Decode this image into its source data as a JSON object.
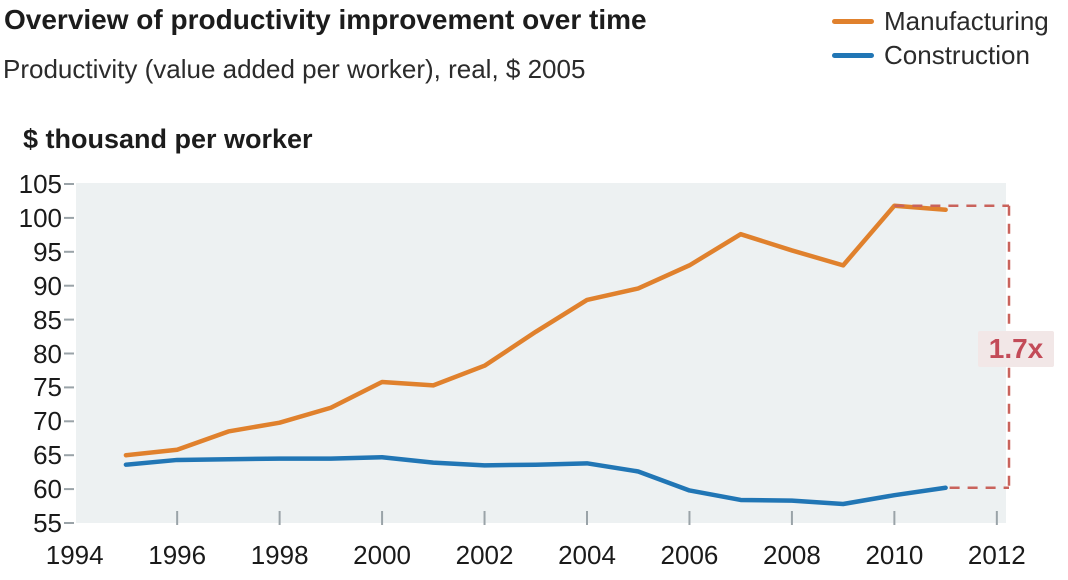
{
  "chart_data": {
    "type": "line",
    "title": "Overview of productivity improvement over time",
    "subtitle": "Productivity (value added per worker), real, $ 2005",
    "ylabel": "$ thousand per worker",
    "x": [
      1995,
      1996,
      1997,
      1998,
      1999,
      2000,
      2001,
      2002,
      2003,
      2004,
      2005,
      2006,
      2007,
      2008,
      2009,
      2010,
      2011
    ],
    "series": [
      {
        "name": "Manufacturing",
        "color": "#E0812D",
        "values": [
          65.0,
          65.8,
          68.5,
          69.8,
          72.0,
          75.8,
          75.3,
          78.2,
          83.2,
          87.9,
          89.6,
          93.0,
          97.6,
          95.2,
          93.0,
          101.8,
          101.2
        ]
      },
      {
        "name": "Construction",
        "color": "#2176B5",
        "values": [
          63.6,
          64.3,
          64.4,
          64.5,
          64.5,
          64.7,
          63.9,
          63.5,
          63.6,
          63.8,
          62.6,
          59.8,
          58.4,
          58.3,
          57.8,
          59.1,
          60.2
        ]
      }
    ],
    "xticks": [
      1994,
      1996,
      1998,
      2000,
      2002,
      2004,
      2006,
      2008,
      2010,
      2012
    ],
    "yticks": [
      55,
      60,
      65,
      70,
      75,
      80,
      85,
      90,
      95,
      100,
      105
    ],
    "xlim": [
      1994,
      2012.3
    ],
    "ylim": [
      55,
      105
    ],
    "grid": false,
    "legend_position": "top-right",
    "plot_background": "#EDF1F2",
    "tick_color": "#9AA3A8",
    "text_color": "#1A1A1A",
    "annotation": {
      "label": "1.7x",
      "text_color": "#C34B58",
      "box_background": "#F2E7E7",
      "line_color": "#C9635C"
    }
  }
}
